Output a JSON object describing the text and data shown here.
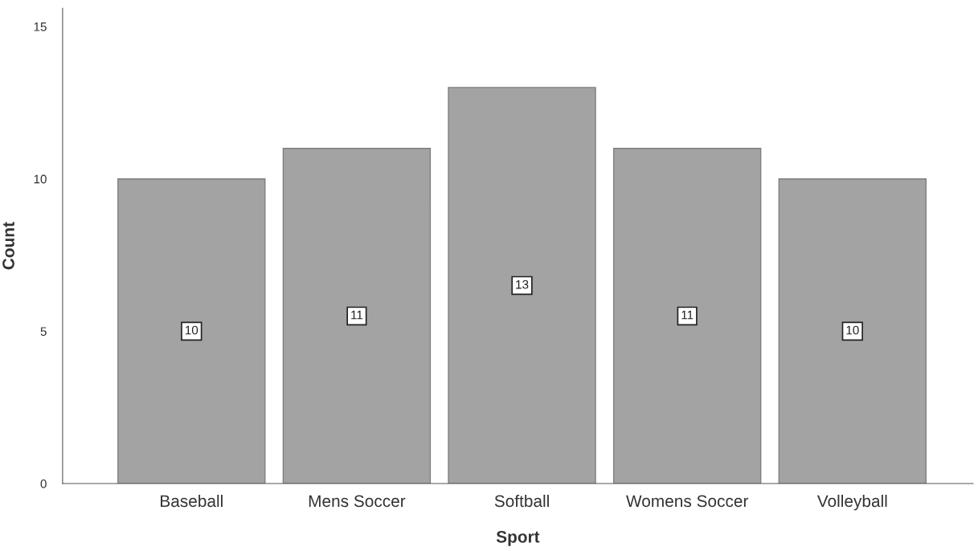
{
  "chart_data": {
    "type": "bar",
    "xlabel": "Sport",
    "ylabel": "Count",
    "categories": [
      "Baseball",
      "Mens Soccer",
      "Softball",
      "Womens Soccer",
      "Volleyball"
    ],
    "values": [
      10,
      11,
      13,
      11,
      10
    ],
    "color": "#a3a3a3",
    "ylim": [
      0,
      15.6
    ],
    "yticks": [
      0,
      5,
      10,
      15
    ],
    "grid": false,
    "data_labels": true
  }
}
